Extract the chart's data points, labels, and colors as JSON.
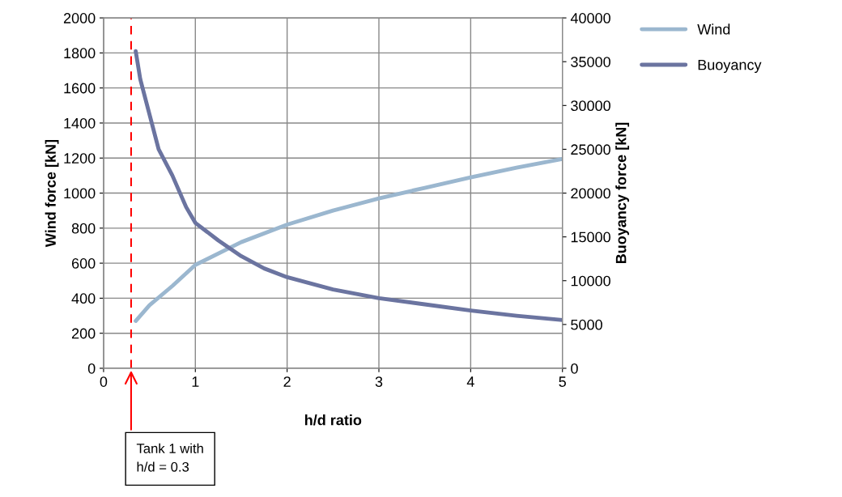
{
  "chart_data": {
    "type": "line",
    "xlabel": "h/d ratio",
    "ylabel": "Wind force [kN]",
    "y2label": "Buoyancy force [kN]",
    "xlim": [
      0,
      5
    ],
    "xticks": [
      0,
      1,
      2,
      3,
      4,
      5
    ],
    "ylim": [
      0,
      2000
    ],
    "yticks": [
      0,
      200,
      400,
      600,
      800,
      1000,
      1200,
      1400,
      1600,
      1800,
      2000
    ],
    "y2lim": [
      0,
      40000
    ],
    "y2ticks": [
      0,
      5000,
      10000,
      15000,
      20000,
      25000,
      30000,
      35000,
      40000
    ],
    "grid": true,
    "legend": "top right",
    "marker": "none",
    "line_style": "solid",
    "series": [
      {
        "name": "Wind",
        "color": "#9bb7cf",
        "x": [
          0.35,
          0.5,
          0.75,
          1,
          1.5,
          2,
          2.5,
          3,
          3.5,
          4,
          4.5,
          5
        ],
        "values": [
          270,
          360,
          470,
          590,
          720,
          820,
          900,
          970,
          1030,
          1090,
          1145,
          1195
        ]
      },
      {
        "name": "Buoyancy",
        "color": "#6b74a0",
        "axis": "y2",
        "x": [
          0.35,
          0.4,
          0.5,
          0.6,
          0.75,
          0.9,
          1,
          1.25,
          1.5,
          1.75,
          2,
          2.5,
          3,
          3.5,
          4,
          4.5,
          5
        ],
        "values": [
          36200,
          33000,
          29000,
          25000,
          22000,
          18400,
          16600,
          14600,
          12800,
          11400,
          10400,
          9000,
          8000,
          7300,
          6600,
          6000,
          5500
        ]
      }
    ],
    "ref_lines": [
      {
        "axis": "x",
        "value": 0.3,
        "color": "#ff0000",
        "line_style": "dashed"
      }
    ],
    "annotations": [
      "Tank 1 with\nh/d = 0.3"
    ]
  }
}
